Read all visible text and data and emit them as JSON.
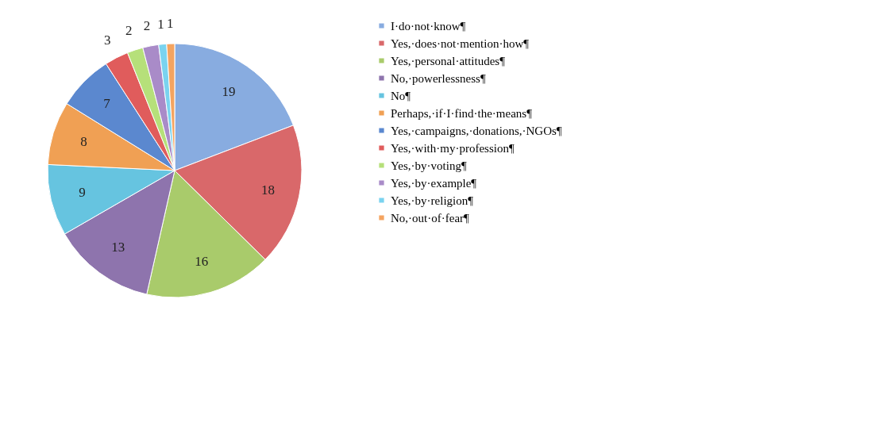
{
  "chart_data": {
    "type": "pie",
    "categories": [
      "I·do·not·know¶",
      "Yes,·does·not·mention·how¶",
      "Yes,·personal·attitudes¶",
      "No,·powerlessness¶",
      "No¶",
      "Perhaps,·if·I·find·the·means¶",
      "Yes,·campaigns,·donations,·NGOs¶",
      "Yes,·with·my·profession¶",
      "Yes,·by·voting¶",
      "Yes,·by·example¶",
      "Yes,·by·religion¶",
      "No,·out·of·fear¶"
    ],
    "values": [
      19,
      18,
      16,
      13,
      9,
      8,
      7,
      3,
      2,
      2,
      1,
      1
    ],
    "colors": [
      "#88ace0",
      "#d9686a",
      "#a9cb6b",
      "#8e74ad",
      "#66c4e0",
      "#f0a054",
      "#5b88cf",
      "#e05c5c",
      "#b6e07a",
      "#a98bc8",
      "#7ad3ef",
      "#f4a460"
    ],
    "data_labels": true,
    "legend": "right"
  }
}
